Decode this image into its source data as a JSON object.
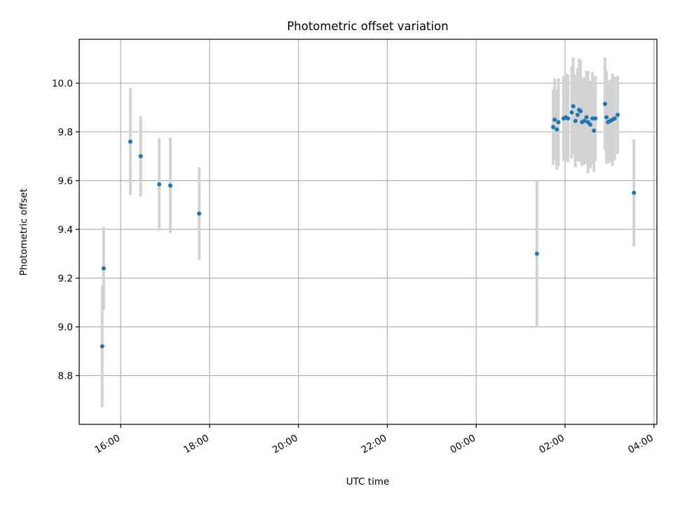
{
  "chart_data": {
    "type": "scatter",
    "title": "Photometric offset variation",
    "xlabel": "UTC time",
    "ylabel": "Photometric offset",
    "x_ticks": [
      "16:00",
      "18:00",
      "20:00",
      "22:00",
      "00:00",
      "02:00",
      "04:00"
    ],
    "y_ticks": [
      "8.8",
      "9.0",
      "9.2",
      "9.4",
      "9.6",
      "9.8",
      "10.0"
    ],
    "y_tick_values": [
      8.8,
      9.0,
      9.2,
      9.4,
      9.6,
      9.8,
      10.0
    ],
    "xlim": [
      "15:04",
      "04:04"
    ],
    "ylim": [
      8.6,
      10.18
    ],
    "grid": true,
    "marker_color": "#1f77b4",
    "errorbar_color": "#d3d3d3",
    "series": [
      {
        "points": [
          {
            "x": "15:35",
            "y": 8.92,
            "err": 0.25
          },
          {
            "x": "15:37",
            "y": 9.24,
            "err": 0.17
          },
          {
            "x": "16:13",
            "y": 9.76,
            "err": 0.22
          },
          {
            "x": "16:27",
            "y": 9.7,
            "err": 0.165
          },
          {
            "x": "16:52",
            "y": 9.585,
            "err": 0.19
          },
          {
            "x": "17:07",
            "y": 9.58,
            "err": 0.195
          },
          {
            "x": "17:46",
            "y": 9.465,
            "err": 0.19
          },
          {
            "x": "01:22",
            "y": 9.3,
            "err": 0.3
          },
          {
            "x": "01:44",
            "y": 9.82,
            "err": 0.155
          },
          {
            "x": "01:46",
            "y": 9.85,
            "err": 0.17
          },
          {
            "x": "01:49",
            "y": 9.81,
            "err": 0.165
          },
          {
            "x": "01:51",
            "y": 9.84,
            "err": 0.18
          },
          {
            "x": "01:58",
            "y": 9.855,
            "err": 0.175
          },
          {
            "x": "02:01",
            "y": 9.86,
            "err": 0.18
          },
          {
            "x": "02:04",
            "y": 9.855,
            "err": 0.18
          },
          {
            "x": "02:09",
            "y": 9.88,
            "err": 0.19
          },
          {
            "x": "02:11",
            "y": 9.905,
            "err": 0.2
          },
          {
            "x": "02:14",
            "y": 9.845,
            "err": 0.19
          },
          {
            "x": "02:17",
            "y": 9.87,
            "err": 0.19
          },
          {
            "x": "02:19",
            "y": 9.89,
            "err": 0.21
          },
          {
            "x": "02:21",
            "y": 9.885,
            "err": 0.21
          },
          {
            "x": "02:23",
            "y": 9.84,
            "err": 0.18
          },
          {
            "x": "02:26",
            "y": 9.845,
            "err": 0.18
          },
          {
            "x": "02:29",
            "y": 9.86,
            "err": 0.19
          },
          {
            "x": "02:31",
            "y": 9.84,
            "err": 0.21
          },
          {
            "x": "02:34",
            "y": 9.83,
            "err": 0.18
          },
          {
            "x": "02:37",
            "y": 9.855,
            "err": 0.19
          },
          {
            "x": "02:39",
            "y": 9.805,
            "err": 0.17
          },
          {
            "x": "02:41",
            "y": 9.855,
            "err": 0.175
          },
          {
            "x": "02:54",
            "y": 9.915,
            "err": 0.19
          },
          {
            "x": "02:56",
            "y": 9.86,
            "err": 0.19
          },
          {
            "x": "02:58",
            "y": 9.84,
            "err": 0.17
          },
          {
            "x": "03:01",
            "y": 9.845,
            "err": 0.17
          },
          {
            "x": "03:04",
            "y": 9.85,
            "err": 0.19
          },
          {
            "x": "03:07",
            "y": 9.855,
            "err": 0.17
          },
          {
            "x": "03:11",
            "y": 9.87,
            "err": 0.16
          },
          {
            "x": "03:33",
            "y": 9.55,
            "err": 0.22
          }
        ]
      }
    ]
  }
}
